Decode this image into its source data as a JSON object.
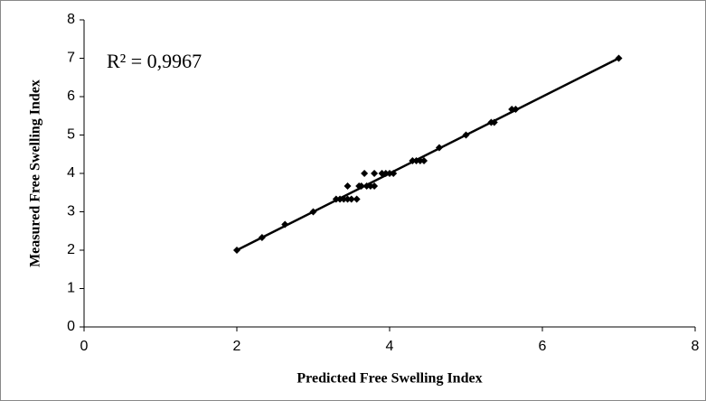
{
  "chart_data": {
    "type": "scatter",
    "x_label": "Predicted Free Swelling Index",
    "y_label": "Measured Free Swelling Index",
    "annotation": "R² = 0,9967",
    "series": [
      {
        "color": "#000000",
        "x": [
          2,
          2.33,
          2.63,
          3,
          3.3,
          3.35,
          3.4,
          3.45,
          3.45,
          3.5,
          3.57,
          3.6,
          3.63,
          3.67,
          3.7,
          3.75,
          3.8,
          3.8,
          3.9,
          3.95,
          4,
          4.05,
          4.3,
          4.35,
          4.4,
          4.45,
          4.65,
          5,
          5.33,
          5.37,
          5.6,
          5.65,
          7
        ],
        "values": [
          2,
          2.33,
          2.67,
          3,
          3.33,
          3.33,
          3.33,
          3.67,
          3.33,
          3.33,
          3.33,
          3.67,
          3.67,
          4,
          3.67,
          3.67,
          4,
          3.67,
          4,
          4,
          4,
          4,
          4.33,
          4.33,
          4.33,
          4.33,
          4.67,
          5,
          5.33,
          5.33,
          5.67,
          5.67,
          7
        ]
      }
    ],
    "trendline": {
      "x": [
        2,
        7
      ],
      "values": [
        2,
        7
      ]
    },
    "xlim": [
      0,
      8
    ],
    "xticks": [
      0,
      2,
      4,
      6,
      8
    ],
    "ylim": [
      0,
      8
    ],
    "yticks": [
      0,
      1,
      2,
      3,
      4,
      5,
      6,
      7,
      8
    ],
    "grid": false
  }
}
